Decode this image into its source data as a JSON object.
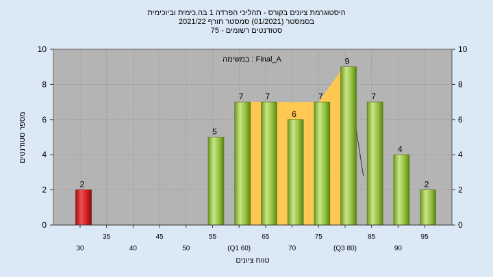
{
  "chart_data": {
    "type": "bar",
    "title_lines": [
      "היסטוגרמת ציונים בקורס - תהליכי הפרדה 1 בה.כימית וביוכימית",
      "בסמסטר  (01/2021)  סמסטר חורף 2021/22",
      "סטודנטים רשומים - 75"
    ],
    "task_label": "במשימה : Final_A",
    "xlabel": "טווח ציונים",
    "ylabel": "מספר סטודנטים",
    "ylim": [
      0,
      10
    ],
    "yticks": [
      0,
      2,
      4,
      6,
      8,
      10
    ],
    "grid": true,
    "xtick_labels": [
      "30",
      "35",
      "40",
      "45",
      "50",
      "55",
      "(Q1 60)",
      "65",
      "70",
      "75",
      "(Q3 80)",
      "85",
      "90",
      "95"
    ],
    "bars": [
      {
        "x": "30",
        "value": 2,
        "color": "red"
      },
      {
        "x": "55",
        "value": 5,
        "color": "green"
      },
      {
        "x": "(Q1 60)",
        "value": 7,
        "color": "green"
      },
      {
        "x": "65",
        "value": 7,
        "color": "green"
      },
      {
        "x": "70",
        "value": 6,
        "color": "green"
      },
      {
        "x": "75",
        "value": 7,
        "color": "green"
      },
      {
        "x": "(Q3 80)",
        "value": 9,
        "color": "green"
      },
      {
        "x": "85",
        "value": 7,
        "color": "green"
      },
      {
        "x": "90",
        "value": 4,
        "color": "green"
      },
      {
        "x": "95",
        "value": 2,
        "color": "green"
      }
    ],
    "iqr_band": {
      "from": "(Q1 60)",
      "to": "(Q3 80)",
      "color": "#ffc852"
    }
  }
}
